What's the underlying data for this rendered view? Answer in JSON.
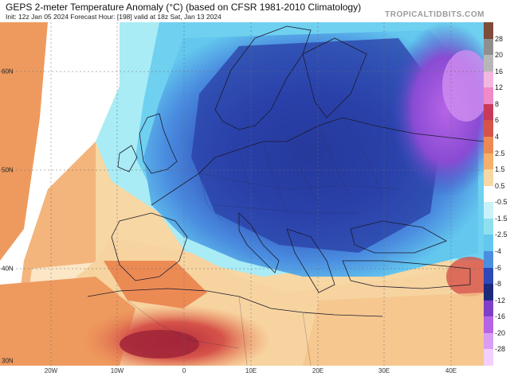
{
  "header": {
    "title": "GEPS 2-meter Temperature Anomaly (°C) (based on CFSR 1981-2010 Climatology)",
    "subtitle": "Init: 12z Jan 05 2024   Forecast Hour: [198]   valid at 18z Sat, Jan 13 2024",
    "brand": "TROPICALTIDBITS.COM"
  },
  "map": {
    "region": "Europe",
    "lat_labels": [
      "60N",
      "50N",
      "40N",
      "30N"
    ],
    "lon_labels": [
      "20W",
      "10W",
      "0",
      "10E",
      "20E",
      "30E",
      "40E"
    ]
  },
  "colorbar": {
    "labels": [
      "28",
      "20",
      "16",
      "12",
      "8",
      "6",
      "4",
      "2.5",
      "1.5",
      "0.5",
      "-0.5",
      "-1.5",
      "-2.5",
      "-4",
      "-6",
      "-8",
      "-12",
      "-16",
      "-20",
      "-28"
    ],
    "colors": [
      "#7f4b3a",
      "#8f8f8f",
      "#b7b7b7",
      "#f2b6df",
      "#f08ac8",
      "#c83a5a",
      "#d6534a",
      "#ec8a54",
      "#f4b06c",
      "#f7d7a3",
      "#ffffff",
      "#c8f2f8",
      "#8fe0ef",
      "#63c7ee",
      "#4b8ee0",
      "#2d48b7",
      "#1d2a7c",
      "#7f3fc7",
      "#b664e6",
      "#d99ef3",
      "#f3cfff"
    ]
  }
}
